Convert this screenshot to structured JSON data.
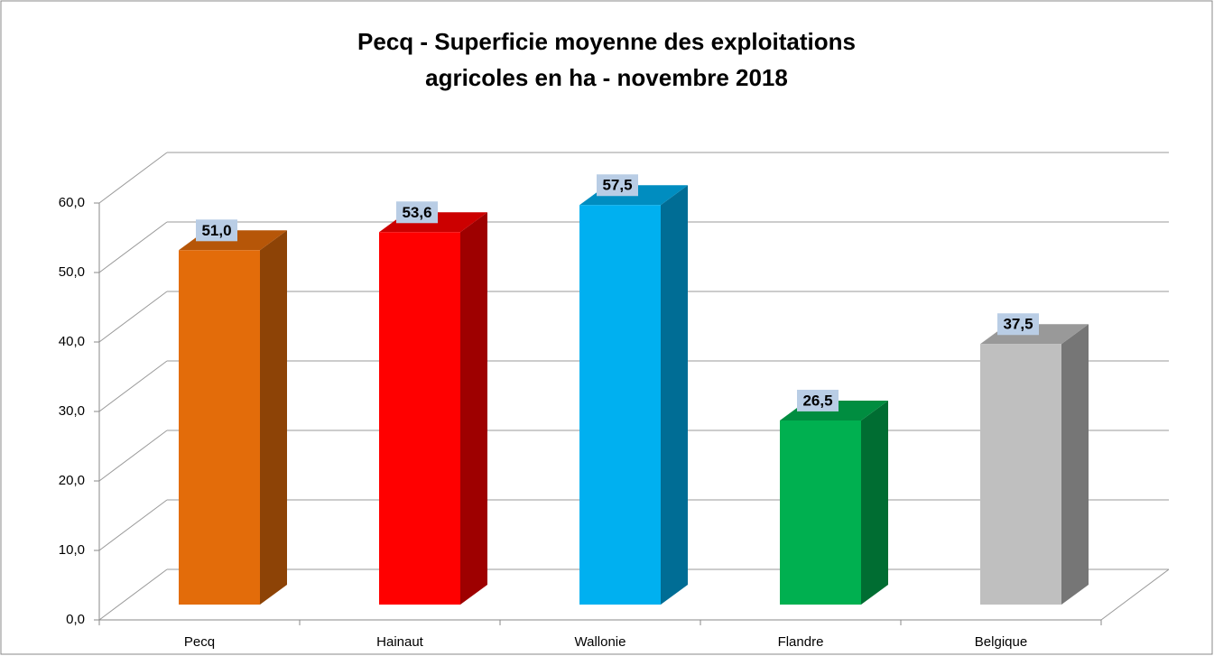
{
  "chart_data": {
    "type": "bar3d",
    "title": [
      "Pecq - Superficie moyenne des exploitations",
      "agricoles en ha - novembre 2018"
    ],
    "categories": [
      "Pecq",
      "Hainaut",
      "Wallonie",
      "Flandre",
      "Belgique"
    ],
    "values": [
      51.0,
      53.6,
      57.5,
      26.5,
      37.5
    ],
    "value_labels": [
      "51,0",
      "53,6",
      "57,5",
      "26,5",
      "37,5"
    ],
    "colors": [
      "#e36c0a",
      "#ff0000",
      "#00b0f0",
      "#00b050",
      "#bfbfbf"
    ],
    "ylim": [
      0,
      60
    ],
    "yticks": [
      {
        "value": 0,
        "label": "0,0"
      },
      {
        "value": 10,
        "label": "10,0"
      },
      {
        "value": 20,
        "label": "20,0"
      },
      {
        "value": 30,
        "label": "30,0"
      },
      {
        "value": 40,
        "label": "40,0"
      },
      {
        "value": 50,
        "label": "50,0"
      },
      {
        "value": 60,
        "label": "60,0"
      }
    ],
    "grid": true
  }
}
